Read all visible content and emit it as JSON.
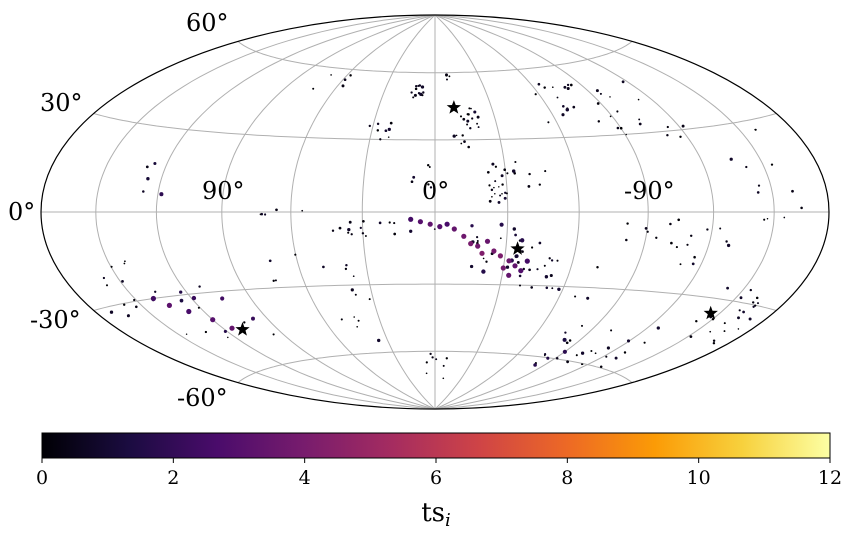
{
  "chart_data": {
    "type": "scatter",
    "projection": "hammer-aitoff (galactic l, b)",
    "grid": true,
    "lon_labels": [
      "90°",
      "0°",
      "-90°"
    ],
    "lat_labels": [
      "60°",
      "30°",
      "0°",
      "-30°",
      "-60°"
    ],
    "colorbar": {
      "label": "ts",
      "label_subscript": "i",
      "range": [
        0,
        12
      ],
      "ticks": [
        "0",
        "2",
        "4",
        "6",
        "8",
        "10",
        "12"
      ],
      "colormap": "inferno",
      "stops": [
        "#000004",
        "#1b0c41",
        "#4a0c6b",
        "#781c6d",
        "#a52c60",
        "#cf4446",
        "#ed6925",
        "#fb9b06",
        "#f7d13d",
        "#fcffa4"
      ]
    },
    "stars": [
      {
        "l": -10,
        "b": 44
      },
      {
        "l": -35,
        "b": -15
      },
      {
        "l": 110,
        "b": -45
      },
      {
        "l": -145,
        "b": -35
      }
    ],
    "clusters": [
      {
        "l_min": 6,
        "l_max": 14,
        "b_min": 47,
        "b_max": 55,
        "n": 12,
        "ts": [
          0,
          1
        ]
      },
      {
        "l_min": -24,
        "l_max": -12,
        "b_min": 34,
        "b_max": 44,
        "n": 14,
        "ts": [
          0,
          1
        ]
      },
      {
        "l_min": -16,
        "l_max": -6,
        "b_min": 25,
        "b_max": 33,
        "n": 6,
        "ts": [
          0,
          1
        ]
      },
      {
        "l_min": -12,
        "l_max": -6,
        "b_min": 56,
        "b_max": 62,
        "n": 4,
        "ts": [
          0,
          1
        ]
      },
      {
        "l_min": 20,
        "l_max": 35,
        "b_min": 30,
        "b_max": 38,
        "n": 8,
        "ts": [
          0,
          1
        ]
      },
      {
        "l_min": 50,
        "l_max": 80,
        "b_min": 50,
        "b_max": 60,
        "n": 5,
        "ts": [
          0,
          1
        ]
      },
      {
        "l_min": -90,
        "l_max": -55,
        "b_min": 36,
        "b_max": 53,
        "n": 16,
        "ts": [
          0,
          1
        ]
      },
      {
        "l_min": -125,
        "l_max": -80,
        "b_min": 27,
        "b_max": 40,
        "n": 12,
        "ts": [
          0,
          1
        ]
      },
      {
        "l_min": -120,
        "l_max": -95,
        "b_min": 40,
        "b_max": 50,
        "n": 5,
        "ts": [
          0,
          1
        ]
      },
      {
        "l_min": -30,
        "l_max": -22,
        "b_min": 3,
        "b_max": 20,
        "n": 20,
        "ts": [
          0,
          1
        ]
      },
      {
        "l_min": -50,
        "l_max": -30,
        "b_min": 10,
        "b_max": 22,
        "n": 8,
        "ts": [
          0,
          1
        ]
      },
      {
        "l_min": 0,
        "l_max": 10,
        "b_min": 10,
        "b_max": 30,
        "n": 6,
        "ts": [
          0,
          1
        ]
      },
      {
        "l_min": 105,
        "l_max": 135,
        "b_min": 6,
        "b_max": 18,
        "n": 5,
        "ts": [
          0,
          2
        ]
      },
      {
        "l_min": 55,
        "l_max": 85,
        "b_min": -1,
        "b_max": 3,
        "n": 5,
        "ts": [
          0,
          1
        ]
      },
      {
        "l_min": 15,
        "l_max": 40,
        "b_min": -10,
        "b_max": -3,
        "n": 10,
        "ts": [
          0,
          1
        ]
      },
      {
        "l_min": -40,
        "l_max": -15,
        "b_min": -25,
        "b_max": -5,
        "n": 22,
        "ts": [
          0,
          2
        ]
      },
      {
        "l_min": -55,
        "l_max": -35,
        "b_min": -28,
        "b_max": -12,
        "n": 12,
        "ts": [
          0,
          1
        ]
      },
      {
        "l_min": 0,
        "l_max": 45,
        "b_min": -8,
        "b_max": -6,
        "n": 6,
        "ts": [
          0,
          1
        ]
      },
      {
        "l_min": 140,
        "l_max": 175,
        "b_min": -35,
        "b_max": -15,
        "n": 12,
        "ts": [
          0,
          2
        ]
      },
      {
        "l_min": 95,
        "l_max": 150,
        "b_min": -50,
        "b_max": -25,
        "n": 14,
        "ts": [
          0,
          3
        ]
      },
      {
        "l_min": 30,
        "l_max": 75,
        "b_min": -35,
        "b_max": -15,
        "n": 10,
        "ts": [
          0,
          1
        ]
      },
      {
        "l_min": -10,
        "l_max": 10,
        "b_min": -75,
        "b_max": -60,
        "n": 8,
        "ts": [
          0,
          1
        ]
      },
      {
        "l_min": -75,
        "l_max": -35,
        "b_min": -35,
        "b_max": -20,
        "n": 12,
        "ts": [
          0,
          1
        ]
      },
      {
        "l_min": -105,
        "l_max": -80,
        "b_min": -12,
        "b_max": 0,
        "n": 8,
        "ts": [
          0,
          1
        ]
      },
      {
        "l_min": -130,
        "l_max": -100,
        "b_min": -20,
        "b_max": -5,
        "n": 10,
        "ts": [
          0,
          1
        ]
      },
      {
        "l_min": -175,
        "l_max": -140,
        "b_min": -45,
        "b_max": -25,
        "n": 24,
        "ts": [
          0,
          1
        ]
      },
      {
        "l_min": -135,
        "l_max": -100,
        "b_min": -62,
        "b_max": -42,
        "n": 16,
        "ts": [
          0,
          1
        ]
      },
      {
        "l_min": -95,
        "l_max": -75,
        "b_min": -65,
        "b_max": -45,
        "n": 12,
        "ts": [
          0,
          2
        ]
      },
      {
        "l_min": -170,
        "l_max": -140,
        "b_min": -5,
        "b_max": 10,
        "n": 7,
        "ts": [
          0,
          1
        ]
      },
      {
        "l_min": -160,
        "l_max": -130,
        "b_min": 15,
        "b_max": 30,
        "n": 5,
        "ts": [
          0,
          1
        ]
      },
      {
        "l_min": 30,
        "l_max": 60,
        "b_min": -55,
        "b_max": -35,
        "n": 6,
        "ts": [
          0,
          1
        ]
      }
    ],
    "chain": [
      {
        "l": 10,
        "b": -3,
        "ts": 2.5
      },
      {
        "l": 6,
        "b": -4,
        "ts": 3.0
      },
      {
        "l": 2,
        "b": -5,
        "ts": 3.3
      },
      {
        "l": -2,
        "b": -6,
        "ts": 3.0
      },
      {
        "l": -5,
        "b": -5,
        "ts": 2.6
      },
      {
        "l": -8,
        "b": -7,
        "ts": 3.4
      },
      {
        "l": -12,
        "b": -10,
        "ts": 3.7
      },
      {
        "l": -15,
        "b": -13,
        "ts": 4.0
      },
      {
        "l": -18,
        "b": -14,
        "ts": 3.8
      },
      {
        "l": -22,
        "b": -12,
        "ts": 3.5
      },
      {
        "l": -25,
        "b": -16,
        "ts": 3.9
      },
      {
        "l": -28,
        "b": -18,
        "ts": 4.1
      },
      {
        "l": -32,
        "b": -20,
        "ts": 3.6
      },
      {
        "l": -35,
        "b": -22,
        "ts": 3.3
      },
      {
        "l": -38,
        "b": -24,
        "ts": 2.9
      },
      {
        "l": -33,
        "b": -26,
        "ts": 3.4
      },
      {
        "l": -30,
        "b": -23,
        "ts": 3.8
      },
      {
        "l": -20,
        "b": -17,
        "ts": 4.2
      },
      {
        "l": -40,
        "b": -20,
        "ts": 2.5
      },
      {
        "l": 135,
        "b": -33,
        "ts": 3.2
      },
      {
        "l": 128,
        "b": -36,
        "ts": 2.6
      },
      {
        "l": 120,
        "b": -40,
        "ts": 3.0
      },
      {
        "l": 115,
        "b": -44,
        "ts": 3.4
      },
      {
        "l": 140,
        "b": -30,
        "ts": 2.4
      }
    ]
  }
}
